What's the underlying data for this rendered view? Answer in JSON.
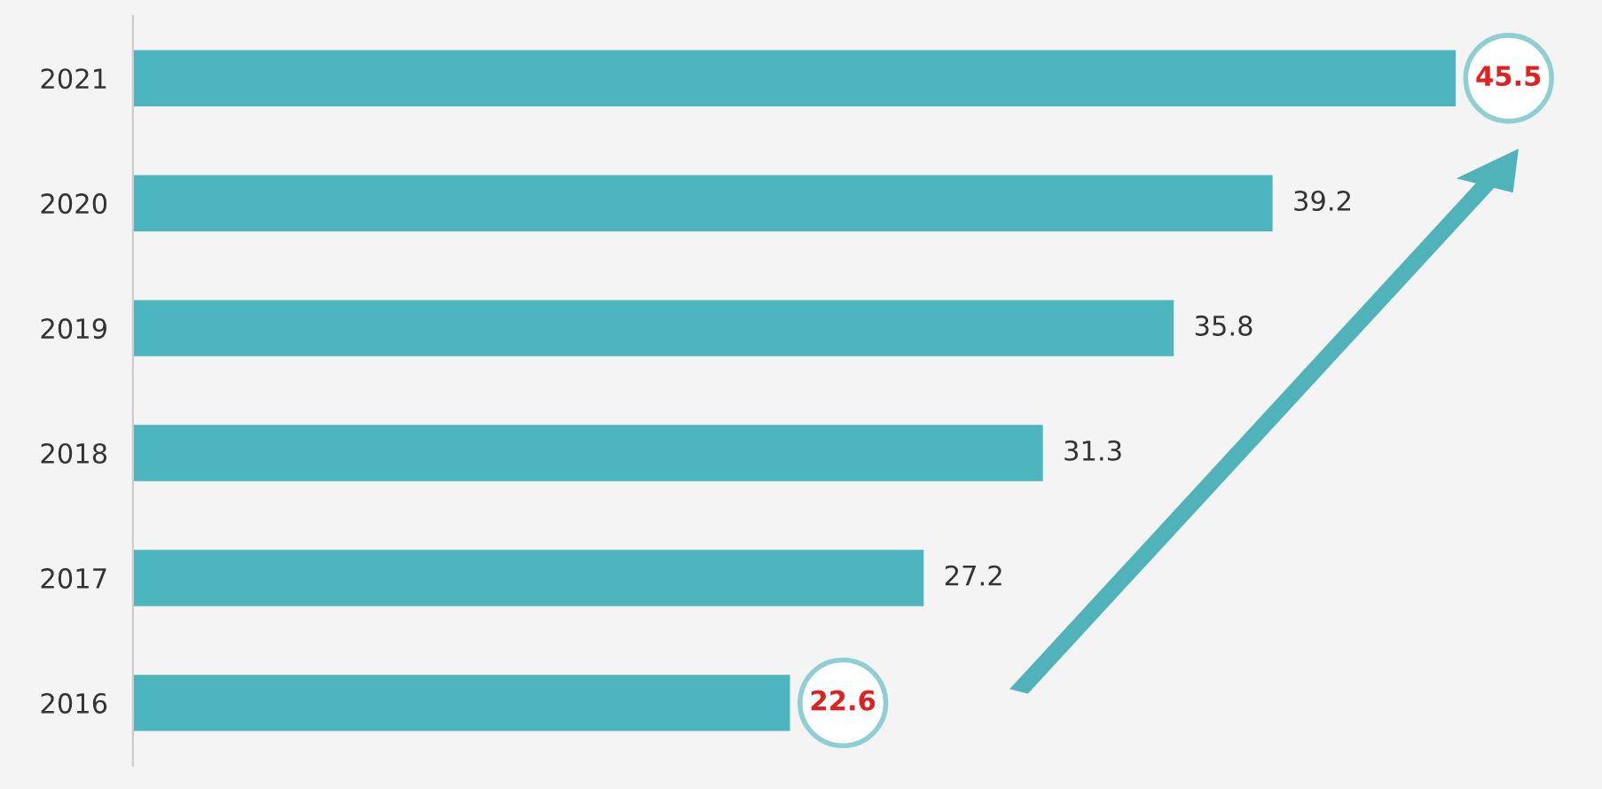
{
  "chart_data": {
    "type": "bar",
    "orientation": "horizontal",
    "categories": [
      "2021",
      "2020",
      "2019",
      "2018",
      "2017",
      "2016"
    ],
    "values": [
      45.5,
      39.2,
      35.8,
      31.3,
      27.2,
      22.6
    ],
    "color": "#4cb5bd",
    "data_labels": true,
    "grid": false
  }
}
